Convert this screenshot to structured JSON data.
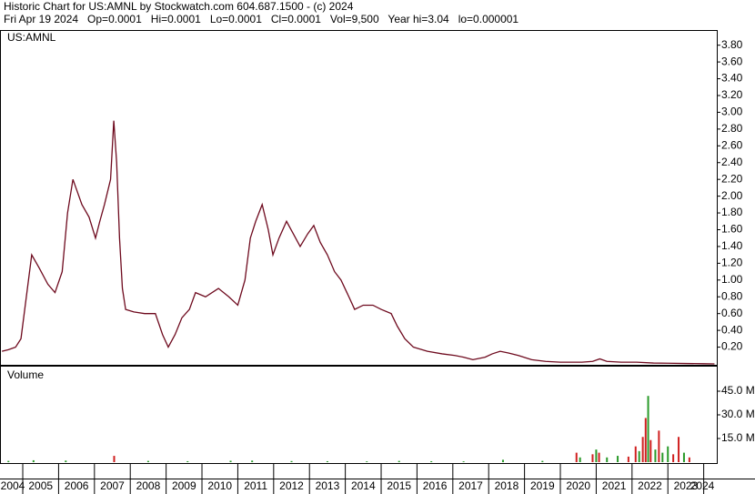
{
  "chart_data": [
    {
      "type": "line",
      "title": "Historic Chart for US:AMNL by Stockwatch.com 604.687.1500 - (c) 2024",
      "subtitle": "Fri Apr 19 2024   Op=0.0001   Hi=0.0001   Lo=0.0001   Cl=0.0001   Vol=9,500   Year hi=3.04   lo=0.000001",
      "x": [
        2004.42,
        2004.6,
        2004.8,
        2004.95,
        2005.1,
        2005.25,
        2005.45,
        2005.7,
        2005.9,
        2006.1,
        2006.25,
        2006.4,
        2006.65,
        2006.85,
        2007.03,
        2007.15,
        2007.28,
        2007.45,
        2007.54,
        2007.62,
        2007.7,
        2007.78,
        2007.87,
        2008.1,
        2008.4,
        2008.7,
        2008.9,
        2009.06,
        2009.25,
        2009.44,
        2009.65,
        2009.82,
        2010.1,
        2010.46,
        2010.75,
        2011.0,
        2011.2,
        2011.35,
        2011.5,
        2011.68,
        2011.85,
        2011.98,
        2012.15,
        2012.36,
        2012.55,
        2012.74,
        2012.95,
        2013.12,
        2013.3,
        2013.5,
        2013.7,
        2013.88,
        2014.1,
        2014.26,
        2014.5,
        2014.77,
        2015.0,
        2015.28,
        2015.45,
        2015.66,
        2015.9,
        2016.29,
        2016.7,
        2017.06,
        2017.3,
        2017.56,
        2017.9,
        2018.1,
        2018.32,
        2018.55,
        2018.83,
        2019.2,
        2019.59,
        2020.0,
        2020.6,
        2020.9,
        2021.1,
        2021.3,
        2021.7,
        2022.13,
        2022.6,
        2023.0,
        2023.5,
        2024.0,
        2024.3
      ],
      "series": [
        {
          "name": "US:AMNL",
          "color": "#6e0a1e",
          "values": [
            0.15,
            0.17,
            0.2,
            0.3,
            0.8,
            1.3,
            1.15,
            0.95,
            0.85,
            1.1,
            1.8,
            2.2,
            1.9,
            1.75,
            1.5,
            1.7,
            1.9,
            2.2,
            2.9,
            2.4,
            1.5,
            0.9,
            0.65,
            0.62,
            0.6,
            0.6,
            0.35,
            0.2,
            0.35,
            0.55,
            0.65,
            0.85,
            0.8,
            0.9,
            0.8,
            0.7,
            1.0,
            1.5,
            1.7,
            1.9,
            1.6,
            1.3,
            1.5,
            1.7,
            1.55,
            1.4,
            1.55,
            1.65,
            1.45,
            1.3,
            1.1,
            1.0,
            0.8,
            0.65,
            0.7,
            0.7,
            0.65,
            0.6,
            0.45,
            0.3,
            0.2,
            0.15,
            0.12,
            0.1,
            0.08,
            0.05,
            0.08,
            0.12,
            0.15,
            0.13,
            0.1,
            0.05,
            0.03,
            0.02,
            0.02,
            0.03,
            0.06,
            0.03,
            0.02,
            0.02,
            0.01,
            0.008,
            0.005,
            0.002,
            0.0001
          ]
        }
      ],
      "xlim": [
        2004.365,
        2024.365
      ],
      "ylim": [
        0,
        3.97
      ],
      "yticks": [
        {
          "value": 0.2,
          "label": "0.20"
        },
        {
          "value": 0.4,
          "label": "0.40"
        },
        {
          "value": 0.6,
          "label": "0.60"
        },
        {
          "value": 0.8,
          "label": "0.80"
        },
        {
          "value": 1.0,
          "label": "1.00"
        },
        {
          "value": 1.2,
          "label": "1.20"
        },
        {
          "value": 1.4,
          "label": "1.40"
        },
        {
          "value": 1.6,
          "label": "1.60"
        },
        {
          "value": 1.8,
          "label": "1.80"
        },
        {
          "value": 2.0,
          "label": "2.00"
        },
        {
          "value": 2.2,
          "label": "2.20"
        },
        {
          "value": 2.4,
          "label": "2.40"
        },
        {
          "value": 2.6,
          "label": "2.60"
        },
        {
          "value": 2.8,
          "label": "2.80"
        },
        {
          "value": 3.0,
          "label": "3.00"
        },
        {
          "value": 3.2,
          "label": "3.20"
        },
        {
          "value": 3.4,
          "label": "3.40"
        },
        {
          "value": 3.6,
          "label": "3.60"
        },
        {
          "value": 3.8,
          "label": "3.80"
        }
      ]
    },
    {
      "type": "bar",
      "title": "Volume",
      "x": [
        2004.6,
        2005.3,
        2006.2,
        2007.55,
        2008.5,
        2009.6,
        2010.8,
        2011.4,
        2012.5,
        2013.5,
        2014.6,
        2015.5,
        2016.4,
        2017.3,
        2018.4,
        2019.5,
        2020.45,
        2020.55,
        2020.9,
        2021.0,
        2021.08,
        2021.3,
        2021.6,
        2021.9,
        2022.1,
        2022.2,
        2022.3,
        2022.38,
        2022.45,
        2022.52,
        2022.65,
        2022.75,
        2022.85,
        2023.0,
        2023.15,
        2023.3,
        2023.45,
        2023.6
      ],
      "values": [
        0.8,
        1.2,
        1.0,
        4.0,
        0.8,
        0.6,
        0.9,
        1.0,
        0.7,
        0.6,
        0.5,
        0.8,
        0.6,
        0.5,
        1.5,
        0.8,
        6.0,
        3.0,
        5.0,
        8.0,
        6.0,
        3.0,
        4.0,
        3.5,
        10.0,
        7.0,
        16.0,
        28.0,
        42.0,
        14.0,
        8.0,
        20.0,
        6.0,
        10.0,
        5.0,
        16.0,
        6.0,
        3.0
      ],
      "colors": [
        "#2a9a2a",
        "#2a9a2a",
        "#2a9a2a",
        "#d02020",
        "#2a9a2a",
        "#2a9a2a",
        "#2a9a2a",
        "#2a9a2a",
        "#2a9a2a",
        "#2a9a2a",
        "#2a9a2a",
        "#2a9a2a",
        "#2a9a2a",
        "#2a9a2a",
        "#2a9a2a",
        "#2a9a2a",
        "#d02020",
        "#2a9a2a",
        "#d02020",
        "#2a9a2a",
        "#d02020",
        "#2a9a2a",
        "#2a9a2a",
        "#d02020",
        "#d02020",
        "#2a9a2a",
        "#d02020",
        "#d02020",
        "#2a9a2a",
        "#d02020",
        "#2a9a2a",
        "#d02020",
        "#2a9a2a",
        "#2a9a2a",
        "#d02020",
        "#d02020",
        "#2a9a2a",
        "#d02020"
      ],
      "xlim": [
        2004.365,
        2024.365
      ],
      "ylim": [
        0,
        60
      ],
      "yticks": [
        {
          "value": 15,
          "label": "15.0 M"
        },
        {
          "value": 30,
          "label": "30.0 M"
        },
        {
          "value": 45,
          "label": "45.0 M"
        }
      ],
      "xticks": [
        2004,
        2005,
        2006,
        2007,
        2008,
        2009,
        2010,
        2011,
        2012,
        2013,
        2014,
        2015,
        2016,
        2017,
        2018,
        2019,
        2020,
        2021,
        2022,
        2023,
        2024
      ]
    }
  ]
}
